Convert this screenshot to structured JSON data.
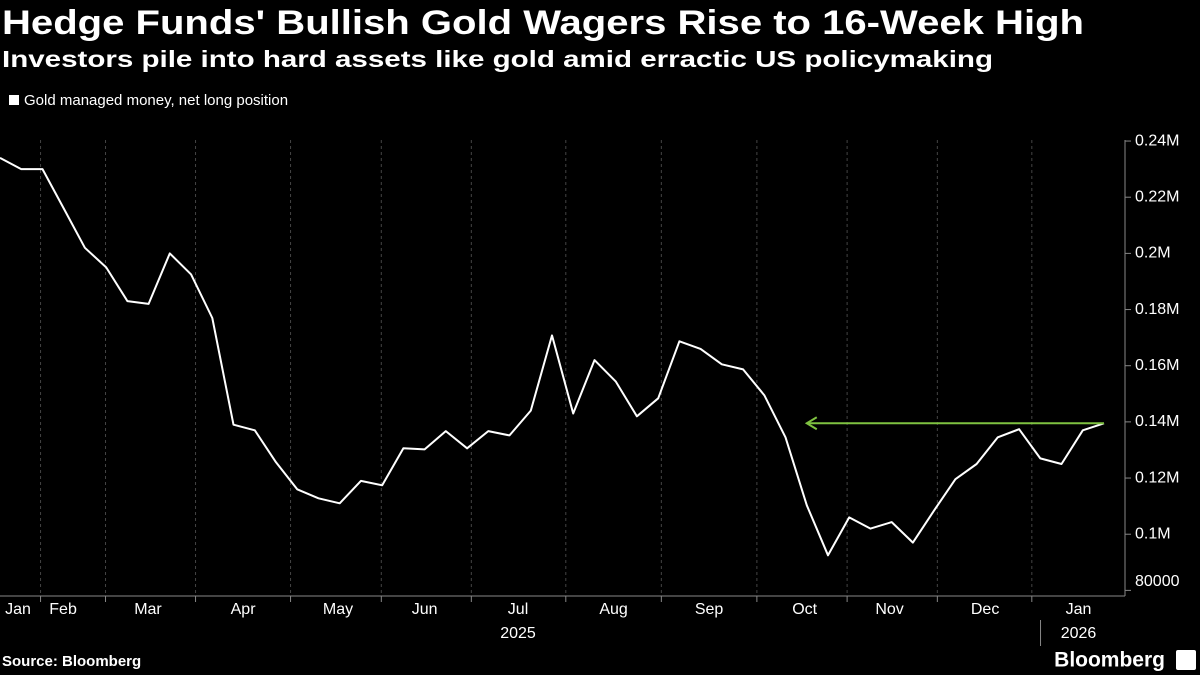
{
  "chart_data": {
    "type": "line",
    "title": "Hedge Funds' Bullish Gold Wagers Rise to 16-Week High",
    "subtitle": "Investors pile into hard assets like gold amid erractic US policymaking",
    "source": "Source: Bloomberg",
    "brand": "Bloomberg",
    "series": [
      {
        "name": "Gold managed money, net long position",
        "color": "#ffffff",
        "values": [
          234000,
          230000,
          230000,
          216000,
          202000,
          195000,
          183000,
          182000,
          200000,
          192500,
          177000,
          139000,
          137000,
          125600,
          116000,
          112800,
          111000,
          119000,
          117400,
          130600,
          130200,
          136700,
          130600,
          136700,
          135200,
          144000,
          170800,
          143000,
          162000,
          154400,
          142000,
          148400,
          168700,
          166000,
          160500,
          158700,
          149500,
          134500,
          110300,
          92500,
          106000,
          102000,
          104300,
          97000,
          108500,
          119600,
          125000,
          134500,
          137400,
          127000,
          125000,
          137000,
          139500
        ]
      }
    ],
    "xlim": [
      0,
      52
    ],
    "xticks": [
      {
        "value": 0.85,
        "label": "Jan"
      },
      {
        "value": 2.97,
        "label": "Feb"
      },
      {
        "value": 6.97,
        "label": "Mar"
      },
      {
        "value": 11.45,
        "label": "Apr"
      },
      {
        "value": 15.92,
        "label": "May"
      },
      {
        "value": 20.0,
        "label": "Jun"
      },
      {
        "value": 24.4,
        "label": "Jul"
      },
      {
        "value": 28.9,
        "label": "Aug"
      },
      {
        "value": 33.4,
        "label": "Sep"
      },
      {
        "value": 37.9,
        "label": "Oct"
      },
      {
        "value": 41.9,
        "label": "Nov"
      },
      {
        "value": 46.4,
        "label": "Dec"
      },
      {
        "value": 50.8,
        "label": "Jan"
      }
    ],
    "year_ticks": [
      {
        "value": 24.4,
        "label": "2025"
      },
      {
        "value": 50.8,
        "label": "2026"
      }
    ],
    "ylim": [
      78000,
      245000
    ],
    "yticks": [
      80000,
      {
        "value": 100000,
        "label": "0.1M"
      },
      {
        "value": 120000,
        "label": "0.12M"
      },
      {
        "value": 140000,
        "label": "0.14M"
      },
      {
        "value": 160000,
        "label": "0.16M"
      },
      {
        "value": 180000,
        "label": "0.18M"
      },
      {
        "value": 200000,
        "label": "0.2M"
      },
      {
        "value": 220000,
        "label": "0.22M"
      },
      {
        "value": 240000,
        "label": "0.24M"
      }
    ],
    "reference_arrow": {
      "x_from": 38,
      "color": "#7fc241"
    }
  }
}
